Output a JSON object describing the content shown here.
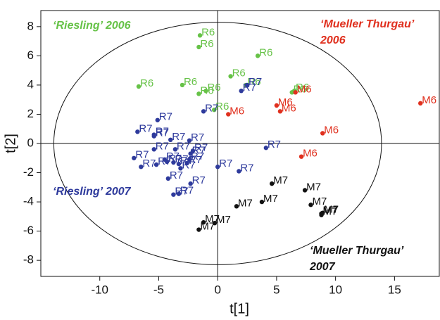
{
  "chart_data": {
    "type": "scatter",
    "x_label": "t[1]",
    "y_label": "t[2]",
    "xlim": [
      -15,
      18.8
    ],
    "ylim": [
      -9.1,
      9.1
    ],
    "xticks": [
      -10,
      -5,
      0,
      5,
      10,
      15
    ],
    "yticks": [
      -8,
      -6,
      -4,
      -2,
      0,
      2,
      4,
      6,
      8
    ],
    "ellipse": {
      "rx": 13.9,
      "ry": 8.3
    },
    "annotations": [
      {
        "lines": [
          "‘Riesling’  2006"
        ],
        "color": "#66c247"
      },
      {
        "lines": [
          "‘Mueller Thurgau’",
          "2006"
        ],
        "color": "#e0301e"
      },
      {
        "lines": [
          "‘Riesling’  2007"
        ],
        "color": "#2e3a9c"
      },
      {
        "lines": [
          "‘Mueller Thurgau’",
          "2007"
        ],
        "color": "#111111"
      }
    ],
    "series": [
      {
        "name": "R6",
        "color": "#66c247",
        "x": [
          -1.5,
          -1.6,
          3.4,
          1.1,
          -3.0,
          -6.7,
          2.4,
          -1.6,
          -1.0,
          -0.3,
          6.3,
          6.5
        ],
        "values": [
          7.4,
          6.6,
          6.0,
          4.6,
          4.0,
          3.9,
          4.0,
          3.4,
          3.6,
          2.3,
          3.5,
          3.6
        ]
      },
      {
        "name": "M6",
        "color": "#e0301e",
        "x": [
          17.2,
          0.9,
          5.0,
          5.3,
          6.6,
          8.9,
          7.1
        ],
        "values": [
          2.75,
          2.0,
          2.6,
          2.2,
          3.5,
          0.7,
          -0.9
        ]
      },
      {
        "name": "R7",
        "color": "#2e3a9c",
        "x": [
          2.5,
          2.0,
          -1.2,
          -5.1,
          -6.8,
          -5.4,
          -5.4,
          -4.0,
          -2.4,
          -5.4,
          -3.6,
          -7.1,
          -6.5,
          -5.2,
          -4.5,
          -4.3,
          -3.75,
          -3.3,
          -3.15,
          -2.3,
          -2.4,
          -2.6,
          -2.1,
          0.0,
          1.8,
          4.1,
          -4.2,
          -2.3,
          -3.75,
          -3.3
        ],
        "values": [
          4.0,
          3.6,
          2.2,
          1.6,
          0.8,
          0.6,
          0.5,
          0.25,
          0.2,
          -0.4,
          -0.4,
          -1.0,
          -1.6,
          -1.45,
          -1.1,
          -1.25,
          -1.3,
          -1.4,
          -1.7,
          -0.7,
          -1.1,
          -1.35,
          -0.5,
          -1.6,
          -1.9,
          -0.3,
          -2.4,
          -2.75,
          -3.5,
          -3.45
        ]
      },
      {
        "name": "M7",
        "color": "#111111",
        "x": [
          4.6,
          7.4,
          7.9,
          3.75,
          1.6,
          8.8,
          8.8,
          8.9,
          -1.2,
          -0.25,
          -1.6
        ],
        "values": [
          -2.75,
          -3.2,
          -4.2,
          -4.0,
          -4.3,
          -4.8,
          -4.9,
          -4.75,
          -5.4,
          -5.45,
          -5.9
        ]
      }
    ]
  }
}
